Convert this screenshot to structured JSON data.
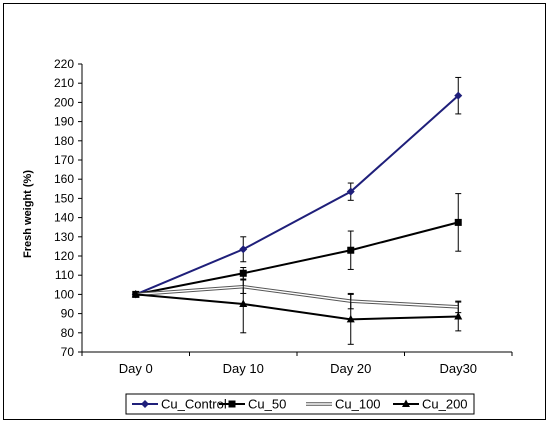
{
  "chart_data": {
    "type": "line",
    "categories": [
      "Day 0",
      "Day 10",
      "Day 20",
      "Day30"
    ],
    "ylabel": "Fresh weight (%)",
    "ylim": [
      70,
      220
    ],
    "ytick_step": 10,
    "yticks": [
      "70",
      "80",
      "90",
      "100",
      "110",
      "120",
      "130",
      "140",
      "150",
      "160",
      "170",
      "180",
      "190",
      "200",
      "210",
      "220"
    ],
    "grid": false,
    "legend_position": "bottom",
    "series": [
      {
        "name": "Cu_Control",
        "values": [
          100,
          123.5,
          153.5,
          203.5
        ],
        "errors": [
          0,
          6.5,
          4.5,
          9.5
        ],
        "color": "#1f1f7a",
        "marker": "diamond"
      },
      {
        "name": "Cu_50",
        "values": [
          100,
          111,
          123,
          137.5
        ],
        "errors": [
          0,
          3,
          10,
          15
        ],
        "color": "#000000",
        "marker": "square"
      },
      {
        "name": "Cu_100",
        "values": [
          100,
          104,
          96.5,
          93.5
        ],
        "errors": [
          0,
          3.5,
          4,
          3
        ],
        "color": "#000000",
        "marker": "none",
        "style": "hollow"
      },
      {
        "name": "Cu_200",
        "values": [
          100,
          95,
          87,
          88.5
        ],
        "errors": [
          0,
          15,
          13,
          7.5
        ],
        "color": "#000000",
        "marker": "triangle"
      }
    ]
  }
}
